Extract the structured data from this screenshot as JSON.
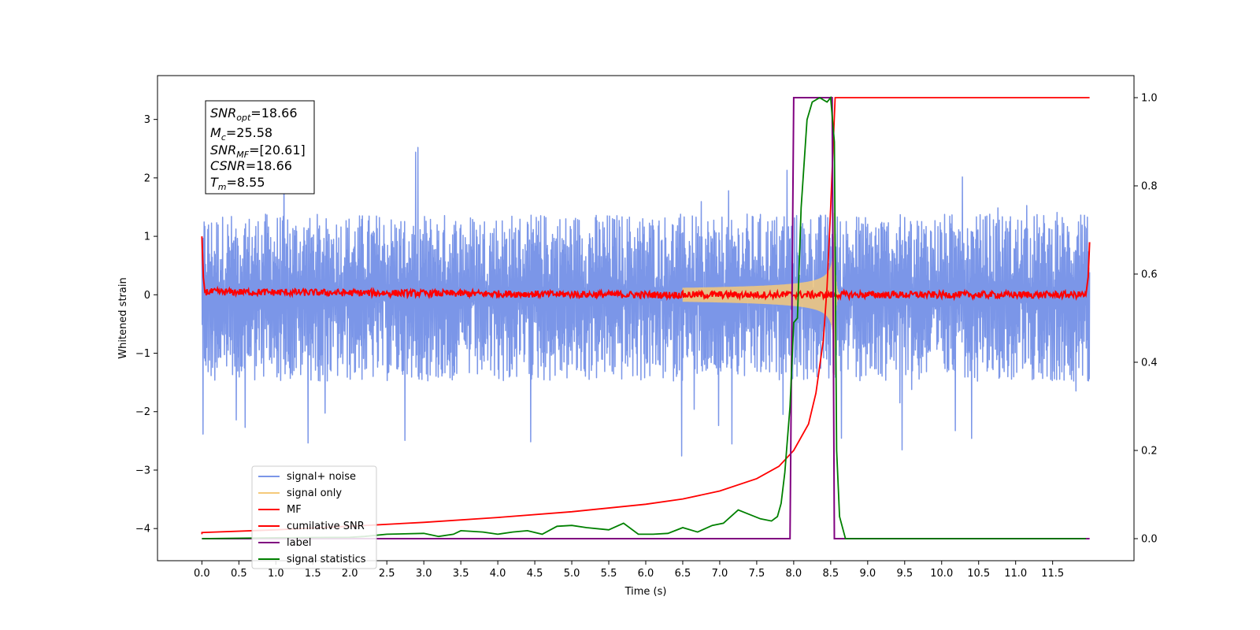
{
  "chart_data": {
    "type": "line",
    "title": "",
    "xlabel": "Time (s)",
    "ylabel": "Whitened strain",
    "y2label": "",
    "xlim": [
      -0.6,
      12.6
    ],
    "ylim": [
      -4.55,
      3.75
    ],
    "y2lim": [
      -0.05,
      1.05
    ],
    "xticks": [
      0.0,
      0.5,
      1.0,
      1.5,
      2.0,
      2.5,
      3.0,
      3.5,
      4.0,
      4.5,
      5.0,
      5.5,
      6.0,
      6.5,
      7.0,
      7.5,
      8.0,
      8.5,
      9.0,
      9.5,
      10.0,
      10.5,
      11.0,
      11.5
    ],
    "xtick_labels": [
      "0.0",
      "0.5",
      "1.0",
      "1.5",
      "2.0",
      "2.5",
      "3.0",
      "3.5",
      "4.0",
      "4.5",
      "5.0",
      "5.5",
      "6.0",
      "6.5",
      "7.0",
      "7.5",
      "8.0",
      "8.5",
      "9.0",
      "9.5",
      "10.0",
      "10.5",
      "11.0",
      "11.5"
    ],
    "yticks": [
      -4,
      -3,
      -2,
      -1,
      0,
      1,
      2,
      3
    ],
    "ytick_labels": [
      "−4",
      "−3",
      "−2",
      "−1",
      "0",
      "1",
      "2",
      "3"
    ],
    "y2ticks": [
      0.0,
      0.2,
      0.4,
      0.6,
      0.8,
      1.0
    ],
    "y2tick_labels": [
      "0.0",
      "0.2",
      "0.4",
      "0.6",
      "0.8",
      "1.0"
    ],
    "grid": false,
    "legend_position": "lower-left",
    "annotation": {
      "snr_opt_value": "=18.66",
      "mc_value": "=25.58",
      "snr_mf_value": "=[20.61]",
      "csnr_value": "=18.66",
      "tm_value": "=8.55"
    },
    "series": [
      {
        "name": "signal+ noise",
        "axis": "left",
        "color": "#7b96e8",
        "noise_envelope": {
          "t_start": 0.0,
          "t_end": 12.0,
          "upper_typical": 1.4,
          "upper_peak": 2.56,
          "lower_typical": -1.5,
          "lower_peak": -2.8
        }
      },
      {
        "name": "signal only",
        "axis": "left",
        "color": "#f5c97a",
        "chirp": {
          "t_start": 6.5,
          "t_merger": 8.55,
          "peak_amplitude": 1.4,
          "ringdown_end": 8.62
        }
      },
      {
        "name": "MF",
        "axis": "left",
        "color": "#ff0000",
        "points": [
          [
            0.0,
            1.0
          ],
          [
            0.02,
            0.3
          ],
          [
            0.04,
            0.05
          ],
          [
            6.0,
            0.0
          ],
          [
            11.95,
            0.0
          ],
          [
            11.98,
            0.3
          ],
          [
            12.0,
            0.9
          ]
        ],
        "jitter": 0.06
      },
      {
        "name": "cumilative SNR",
        "axis": "right",
        "color": "#ff0000",
        "points": [
          [
            0.0,
            0.01
          ],
          [
            0.0,
            0.014
          ],
          [
            1.0,
            0.02
          ],
          [
            2.0,
            0.028
          ],
          [
            3.0,
            0.037
          ],
          [
            4.0,
            0.048
          ],
          [
            5.0,
            0.061
          ],
          [
            6.0,
            0.078
          ],
          [
            6.5,
            0.09
          ],
          [
            7.0,
            0.108
          ],
          [
            7.5,
            0.136
          ],
          [
            7.8,
            0.164
          ],
          [
            8.0,
            0.2
          ],
          [
            8.2,
            0.26
          ],
          [
            8.3,
            0.33
          ],
          [
            8.4,
            0.45
          ],
          [
            8.45,
            0.57
          ],
          [
            8.5,
            0.75
          ],
          [
            8.53,
            0.88
          ],
          [
            8.56,
            1.0
          ],
          [
            12.0,
            1.0
          ]
        ]
      },
      {
        "name": "label",
        "axis": "right",
        "color": "#800080",
        "points": [
          [
            0.0,
            0.0
          ],
          [
            7.95,
            0.0
          ],
          [
            8.0,
            1.0
          ],
          [
            8.52,
            1.0
          ],
          [
            8.55,
            0.0
          ],
          [
            12.0,
            0.0
          ]
        ]
      },
      {
        "name": "signal statistics",
        "axis": "right",
        "color": "#008000",
        "points": [
          [
            0.0,
            0.0
          ],
          [
            1.0,
            0.002
          ],
          [
            2.0,
            0.003
          ],
          [
            2.2,
            0.005
          ],
          [
            2.5,
            0.01
          ],
          [
            3.0,
            0.012
          ],
          [
            3.2,
            0.005
          ],
          [
            3.4,
            0.01
          ],
          [
            3.5,
            0.018
          ],
          [
            3.8,
            0.015
          ],
          [
            4.0,
            0.01
          ],
          [
            4.2,
            0.015
          ],
          [
            4.4,
            0.018
          ],
          [
            4.6,
            0.01
          ],
          [
            4.8,
            0.028
          ],
          [
            5.0,
            0.03
          ],
          [
            5.2,
            0.025
          ],
          [
            5.5,
            0.02
          ],
          [
            5.7,
            0.035
          ],
          [
            5.9,
            0.01
          ],
          [
            6.1,
            0.01
          ],
          [
            6.3,
            0.012
          ],
          [
            6.5,
            0.025
          ],
          [
            6.7,
            0.015
          ],
          [
            6.9,
            0.03
          ],
          [
            7.05,
            0.035
          ],
          [
            7.25,
            0.065
          ],
          [
            7.4,
            0.055
          ],
          [
            7.55,
            0.045
          ],
          [
            7.7,
            0.04
          ],
          [
            7.78,
            0.05
          ],
          [
            7.83,
            0.08
          ],
          [
            7.88,
            0.15
          ],
          [
            7.95,
            0.3
          ],
          [
            8.0,
            0.49
          ],
          [
            8.05,
            0.5
          ],
          [
            8.1,
            0.75
          ],
          [
            8.18,
            0.95
          ],
          [
            8.25,
            0.99
          ],
          [
            8.35,
            1.0
          ],
          [
            8.45,
            0.99
          ],
          [
            8.5,
            1.0
          ],
          [
            8.55,
            0.9
          ],
          [
            8.58,
            0.2
          ],
          [
            8.62,
            0.05
          ],
          [
            8.7,
            0.0
          ],
          [
            11.95,
            0.0
          ]
        ]
      }
    ]
  }
}
